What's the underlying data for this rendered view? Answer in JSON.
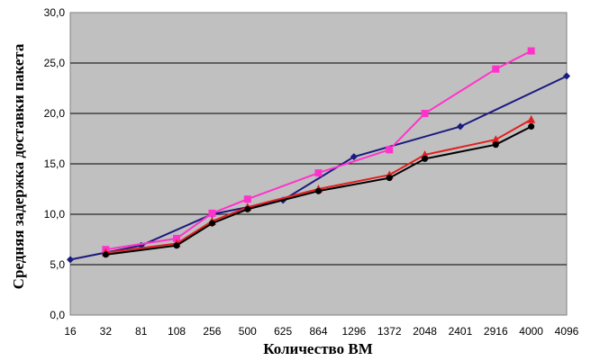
{
  "chart_data": {
    "type": "line",
    "title": "",
    "xlabel": "Количество ВМ",
    "ylabel": "Средняя задержка доставки пакета",
    "categories": [
      "16",
      "32",
      "81",
      "108",
      "256",
      "500",
      "625",
      "864",
      "1296",
      "1372",
      "2048",
      "2401",
      "2916",
      "4000",
      "4096"
    ],
    "y_ticks": [
      "0,0",
      "5,0",
      "10,0",
      "15,0",
      "20,0",
      "25,0",
      "30,0"
    ],
    "ylim": [
      0,
      30
    ],
    "grid": "horizontal",
    "plot_background": "#c0c0c0",
    "series": [
      {
        "color": "#1a1a80",
        "marker": "diamond",
        "values": [
          5.5,
          null,
          6.9,
          null,
          10.0,
          null,
          11.4,
          null,
          15.7,
          null,
          null,
          18.7,
          null,
          null,
          23.7
        ]
      },
      {
        "color": "#ff33cc",
        "marker": "square",
        "values": [
          null,
          6.5,
          null,
          7.6,
          10.1,
          11.5,
          null,
          14.1,
          null,
          16.4,
          20.0,
          null,
          24.4,
          26.2,
          null
        ]
      },
      {
        "color": "#e02020",
        "marker": "triangle",
        "values": [
          null,
          6.2,
          null,
          7.1,
          9.3,
          10.7,
          null,
          12.5,
          null,
          13.9,
          15.9,
          null,
          17.4,
          19.4,
          null
        ]
      },
      {
        "color": "#000000",
        "marker": "circle",
        "values": [
          null,
          6.0,
          null,
          6.9,
          9.1,
          10.5,
          null,
          12.3,
          null,
          13.6,
          15.5,
          null,
          16.9,
          18.7,
          null
        ]
      }
    ]
  }
}
